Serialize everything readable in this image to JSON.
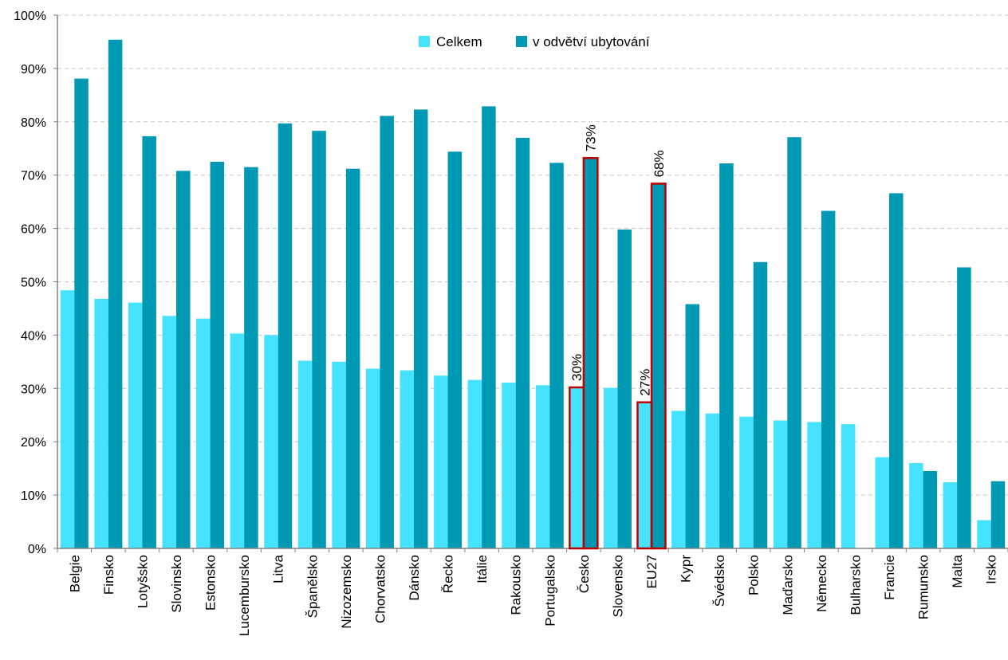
{
  "chart_data": {
    "type": "bar",
    "categories": [
      "Belgie",
      "Finsko",
      "Lotyšsko",
      "Slovinsko",
      "Estonsko",
      "Lucembursko",
      "Litva",
      "Španělsko",
      "Nizozemsko",
      "Chorvatsko",
      "Dánsko",
      "Řecko",
      "Itálie",
      "Rakousko",
      "Portugalsko",
      "Česko",
      "Slovensko",
      "EU27",
      "Kypr",
      "Švédsko",
      "Polsko",
      "Maďarsko",
      "Německo",
      "Bulharsko",
      "Francie",
      "Rumunsko",
      "Malta",
      "Irsko"
    ],
    "series": [
      {
        "name": "Celkem",
        "color": "#45e3ff",
        "values": [
          48.4,
          46.8,
          46.1,
          43.6,
          43.1,
          40.3,
          40.0,
          35.2,
          35.0,
          33.7,
          33.4,
          32.4,
          31.6,
          31.1,
          30.6,
          30.2,
          30.1,
          27.4,
          25.8,
          25.3,
          24.7,
          24.0,
          23.7,
          23.3,
          17.1,
          16.0,
          12.4,
          5.3
        ]
      },
      {
        "name": "v odvětví ubytování",
        "color": "#0099b3",
        "values": [
          88.1,
          95.4,
          77.3,
          70.8,
          72.5,
          71.5,
          79.7,
          78.3,
          71.2,
          81.1,
          82.3,
          74.4,
          82.9,
          77.0,
          72.3,
          73.2,
          59.8,
          68.4,
          45.8,
          72.2,
          53.7,
          77.1,
          63.3,
          0,
          66.6,
          14.5,
          52.7,
          12.6
        ]
      }
    ],
    "ylim": [
      0,
      100
    ],
    "yticks": [
      "0%",
      "10%",
      "20%",
      "30%",
      "40%",
      "50%",
      "60%",
      "70%",
      "80%",
      "90%",
      "100%"
    ],
    "grid": true,
    "legend_position": "top",
    "highlight_color": "#c00000",
    "highlights": [
      {
        "category": "Česko",
        "labels": [
          "30%",
          "73%"
        ]
      },
      {
        "category": "EU27",
        "labels": [
          "27%",
          "68%"
        ]
      }
    ]
  }
}
